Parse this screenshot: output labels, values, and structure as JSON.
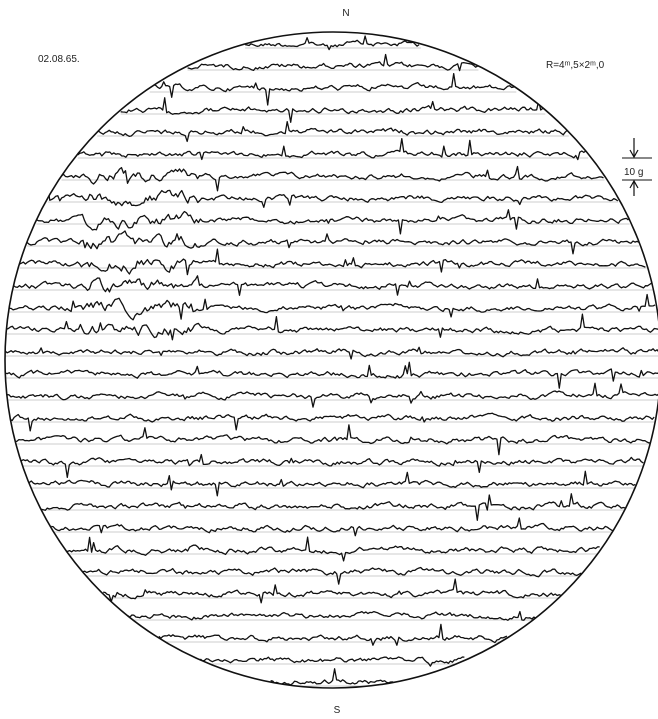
{
  "labels": {
    "north": "N",
    "south": "S",
    "date": "02.08.65.",
    "raster": "R=4ᵐ,5×2ᵐ,0",
    "scale": "10 g"
  }
}
